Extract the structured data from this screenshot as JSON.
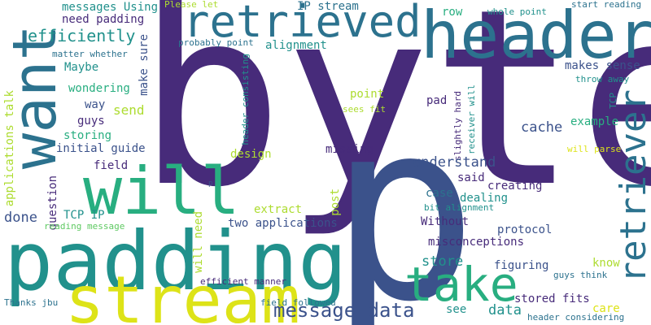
{
  "palette": {
    "c1": "#472b7a",
    "c2": "#3b528b",
    "c3": "#2c728e",
    "c4": "#21918c",
    "c5": "#28ae80",
    "c6": "#5ec962",
    "c7": "#addc30",
    "c8": "#dde318"
  },
  "words": [
    {
      "text": "byte",
      "color": "c1"
    },
    {
      "text": "p",
      "color": "c2"
    },
    {
      "text": "padding",
      "color": "c4"
    },
    {
      "text": "want",
      "color": "c3"
    },
    {
      "text": "header",
      "color": "c3"
    },
    {
      "text": "retrieved",
      "color": "c3"
    },
    {
      "text": "will",
      "color": "c5"
    },
    {
      "text": "stream",
      "color": "c8"
    },
    {
      "text": "take",
      "color": "c5"
    },
    {
      "text": "retriever",
      "color": "c3"
    },
    {
      "text": "message data",
      "color": "c2"
    },
    {
      "text": "efficiently",
      "color": "c4"
    },
    {
      "text": "messages Using",
      "color": "c4"
    },
    {
      "text": "need padding",
      "color": "c1"
    },
    {
      "text": "Please let",
      "color": "c7"
    },
    {
      "text": "IP stream",
      "color": "c3"
    },
    {
      "text": "whole point",
      "color": "c4"
    },
    {
      "text": "start reading",
      "color": "c3"
    },
    {
      "text": "row",
      "color": "c5"
    },
    {
      "text": "alignment",
      "color": "c4"
    },
    {
      "text": "probably point",
      "color": "c3"
    },
    {
      "text": "matter whether",
      "color": "c3"
    },
    {
      "text": "Maybe",
      "color": "c4"
    },
    {
      "text": "make sure",
      "color": "c2"
    },
    {
      "text": "makes sense",
      "color": "c2"
    },
    {
      "text": "throw away",
      "color": "c4"
    },
    {
      "text": "wondering",
      "color": "c5"
    },
    {
      "text": "header consisting",
      "color": "c4"
    },
    {
      "text": "point",
      "color": "c7"
    },
    {
      "text": "sees fit",
      "color": "c7"
    },
    {
      "text": "pad",
      "color": "c1"
    },
    {
      "text": "slightly hard",
      "color": "c1"
    },
    {
      "text": "receiver will",
      "color": "c4"
    },
    {
      "text": "TCP",
      "color": "c4"
    },
    {
      "text": "way",
      "color": "c2"
    },
    {
      "text": "send",
      "color": "c7"
    },
    {
      "text": "guys",
      "color": "c1"
    },
    {
      "text": "cache",
      "color": "c2"
    },
    {
      "text": "example",
      "color": "c5"
    },
    {
      "text": "applications talk",
      "color": "c7"
    },
    {
      "text": "storing",
      "color": "c5"
    },
    {
      "text": "initial guide",
      "color": "c2"
    },
    {
      "text": "design",
      "color": "c7"
    },
    {
      "text": "missing",
      "color": "c1"
    },
    {
      "text": "will parse",
      "color": "c8"
    },
    {
      "text": "understand",
      "color": "c2"
    },
    {
      "text": "field",
      "color": "c1"
    },
    {
      "text": "question",
      "color": "c1"
    },
    {
      "text": "said",
      "color": "c1"
    },
    {
      "text": "creating",
      "color": "c1"
    },
    {
      "text": "p",
      "color": "c2"
    },
    {
      "text": "done",
      "color": "c2"
    },
    {
      "text": "TCP IP",
      "color": "c4"
    },
    {
      "text": "extract",
      "color": "c7"
    },
    {
      "text": "post",
      "color": "c7"
    },
    {
      "text": "case",
      "color": "c3"
    },
    {
      "text": "dealing",
      "color": "c4"
    },
    {
      "text": "bit alignment",
      "color": "c4"
    },
    {
      "text": "Without",
      "color": "c1"
    },
    {
      "text": "reading message",
      "color": "c6"
    },
    {
      "text": "will need",
      "color": "c7"
    },
    {
      "text": "two applications",
      "color": "c2"
    },
    {
      "text": "protocol",
      "color": "c2"
    },
    {
      "text": "misconceptions",
      "color": "c1"
    },
    {
      "text": "store",
      "color": "c4"
    },
    {
      "text": "figuring",
      "color": "c2"
    },
    {
      "text": "know",
      "color": "c7"
    },
    {
      "text": "efficient manner",
      "color": "c1"
    },
    {
      "text": "guys think",
      "color": "c3"
    },
    {
      "text": "Thanks jbu",
      "color": "c3"
    },
    {
      "text": "field followed",
      "color": "c3"
    },
    {
      "text": "stored fits",
      "color": "c1"
    },
    {
      "text": "see",
      "color": "c4"
    },
    {
      "text": "data",
      "color": "c4"
    },
    {
      "text": "care",
      "color": "c8"
    },
    {
      "text": "header considering",
      "color": "c3"
    }
  ]
}
